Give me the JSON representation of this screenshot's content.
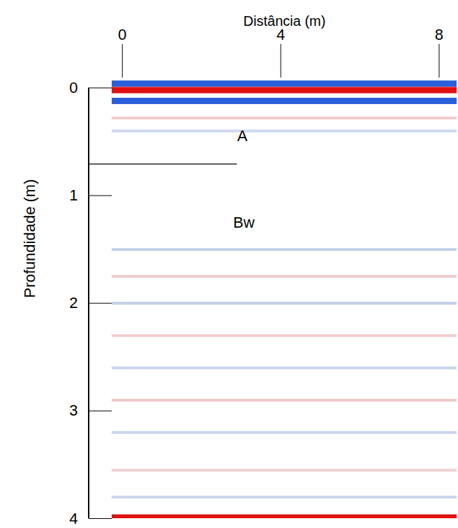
{
  "chart_data": {
    "type": "radargram",
    "x_label": "Distância (m)",
    "y_label": "Profundidade (m)",
    "xlim": [
      -0.26,
      8.45
    ],
    "xticks": [
      0,
      4,
      8
    ],
    "ylim": [
      -0.1,
      4
    ],
    "yticks": [
      0,
      1,
      2,
      3,
      4
    ],
    "reflectors": [
      {
        "depth": -0.04,
        "color": "#2b5fd9"
      },
      {
        "depth": 0.02,
        "color": "#e01010"
      },
      {
        "depth": 0.12,
        "color": "#2b5fd9"
      },
      {
        "depth": 0.28,
        "color": "#e8a0a0"
      },
      {
        "depth": 0.4,
        "color": "#a8b8e0"
      },
      {
        "depth": 1.5,
        "color": "#8fa8d8"
      },
      {
        "depth": 1.75,
        "color": "#e0a0a0"
      },
      {
        "depth": 2.0,
        "color": "#8fa8d8"
      },
      {
        "depth": 2.3,
        "color": "#e0a8a8"
      },
      {
        "depth": 2.6,
        "color": "#9fb0dc"
      },
      {
        "depth": 2.9,
        "color": "#e0a0a0"
      },
      {
        "depth": 3.2,
        "color": "#9fb0dc"
      },
      {
        "depth": 3.55,
        "color": "#e0a8a8"
      },
      {
        "depth": 3.8,
        "color": "#9fb0dc"
      },
      {
        "depth": 3.99,
        "color": "#e01010"
      }
    ],
    "horizon": {
      "depth": 0.71,
      "x_end": 2.9
    },
    "annotations": [
      {
        "text": "A",
        "x": 2.9,
        "y": 0.45
      },
      {
        "text": "Bw",
        "x": 2.8,
        "y": 1.25
      }
    ]
  }
}
